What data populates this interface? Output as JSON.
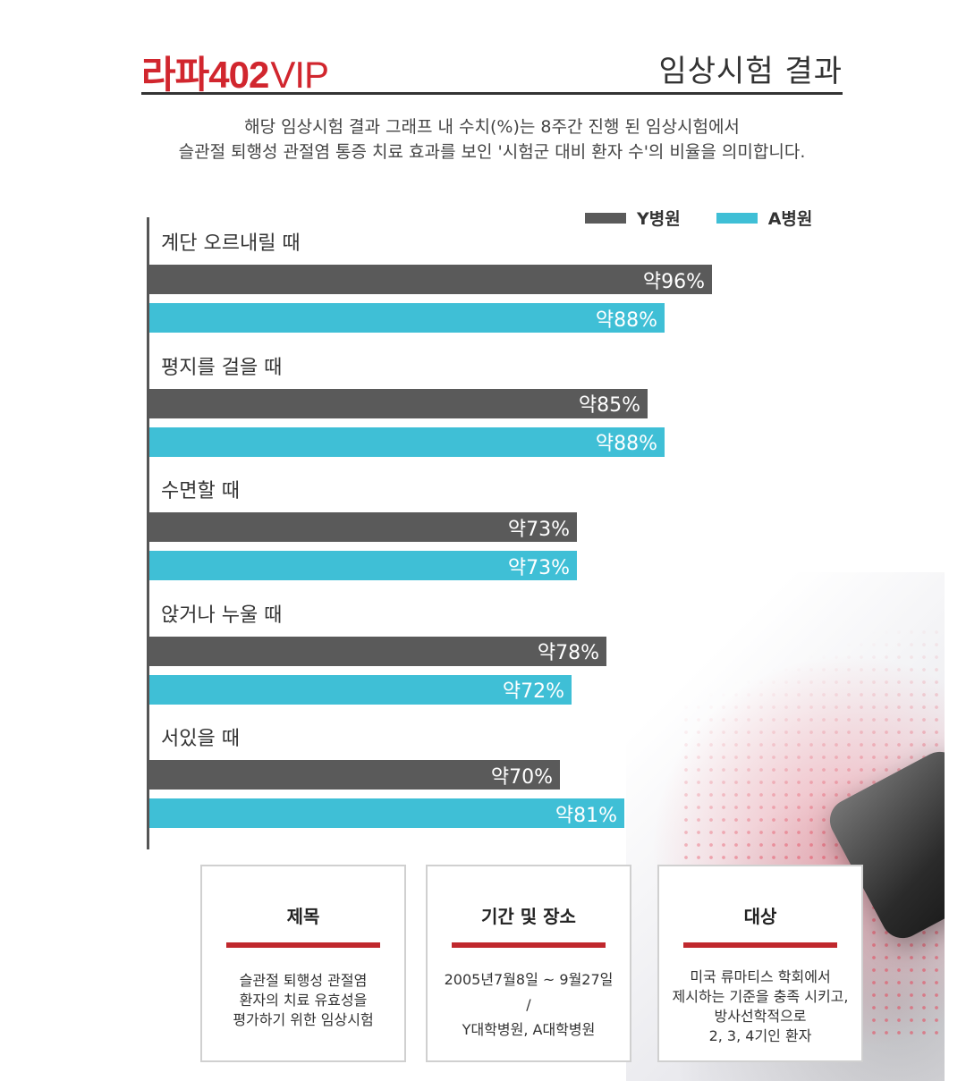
{
  "header": {
    "logo_brand": "라파402",
    "logo_suffix": "VIP",
    "title": "임상시험 결과"
  },
  "description": {
    "line1": "해당 임상시험 결과 그래프 내 수치(%)는 8주간 진행 된 임상시험에서",
    "line2": "슬관절 퇴행성 관절염 통증 치료 효과를 보인 '시험군 대비 환자 수'의 비율을 의미합니다."
  },
  "colors": {
    "y_hospital": "#5a5a5a",
    "a_hospital": "#3fbfd6",
    "accent": "#c0282d"
  },
  "chart_data": {
    "type": "bar",
    "orientation": "horizontal",
    "categories": [
      "계단 오르내릴 때",
      "평지를 걸을 때",
      "수면할 때",
      "앉거나 누울 때",
      "서있을 때"
    ],
    "series": [
      {
        "name": "Y병원",
        "values": [
          96,
          85,
          73,
          78,
          70
        ],
        "labels": [
          "약96%",
          "약85%",
          "약73%",
          "약78%",
          "약70%"
        ]
      },
      {
        "name": "A병원",
        "values": [
          88,
          88,
          73,
          72,
          81
        ],
        "labels": [
          "약88%",
          "약88%",
          "약73%",
          "약72%",
          "약81%"
        ]
      }
    ],
    "unit": "%",
    "legend_position": "top-right",
    "grid": false
  },
  "cards": [
    {
      "title": "제목",
      "lines": [
        "슬관절 퇴행성 관절염",
        "환자의 치료 유효성을",
        "평가하기 위한 임상시험"
      ]
    },
    {
      "title": "기간 및 장소",
      "lines": [
        "2005년7월8일 ~ 9월27일",
        "/",
        "Y대학병원, A대학병원"
      ]
    },
    {
      "title": "대상",
      "lines": [
        "미국 류마티스 학회에서",
        "제시하는 기준을 충족 시키고,",
        "방사선학적으로",
        "2, 3, 4기인 환자"
      ]
    }
  ]
}
